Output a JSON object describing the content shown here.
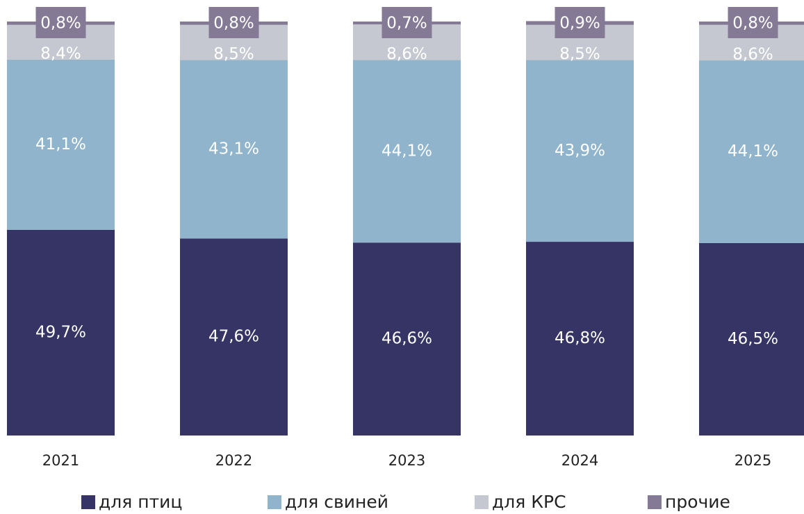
{
  "chart_data": {
    "type": "stacked_bar",
    "categories": [
      "2021",
      "2022",
      "2023",
      "2024",
      "2025"
    ],
    "ylim": [
      0,
      100
    ],
    "series": [
      {
        "name": "для птиц",
        "color": "#353465",
        "values": [
          49.7,
          47.6,
          46.6,
          46.8,
          46.5
        ],
        "value_labels": [
          "49,7%",
          "47,6%",
          "46,6%",
          "46,8%",
          "46,5%"
        ]
      },
      {
        "name": "для свиней",
        "color": "#8fb4cb",
        "values": [
          41.1,
          43.1,
          44.1,
          43.9,
          44.1
        ],
        "value_labels": [
          "41,1%",
          "43,1%",
          "44,1%",
          "43,9%",
          "44,1%"
        ]
      },
      {
        "name": "для КРС",
        "color": "#c5c8d0",
        "values": [
          8.4,
          8.5,
          8.6,
          8.5,
          8.6
        ],
        "value_labels": [
          "8,4%",
          "8,5%",
          "8,6%",
          "8,5%",
          "8,6%"
        ]
      },
      {
        "name": "прочие",
        "color": "#857a95",
        "values": [
          0.8,
          0.8,
          0.7,
          0.9,
          0.8
        ],
        "value_labels": [
          "0,8%",
          "0,8%",
          "0,7%",
          "0,9%",
          "0,8%"
        ]
      }
    ]
  }
}
